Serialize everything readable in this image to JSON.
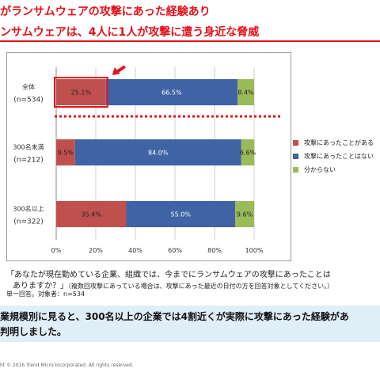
{
  "header": {
    "title_line1": "がランサムウェアの攻撃にあった経験あり",
    "title_line2": "ンサムウェアは、4人に1人が攻撃に遭う身近な脅威"
  },
  "colors": {
    "red": "#c0504d",
    "blue": "#3f63a4",
    "green": "#9bbb59",
    "highlight": "#e4121a"
  },
  "chart_data": {
    "type": "bar",
    "orientation": "horizontal",
    "stacked": true,
    "categories": [
      {
        "label": "全体",
        "n": "(n=534)"
      },
      {
        "label": "300名未満",
        "n": "(n=212)"
      },
      {
        "label": "300名以上",
        "n": "(n=322)"
      }
    ],
    "series": [
      {
        "name": "攻撃にあったことがある",
        "values": [
          25.1,
          9.5,
          35.4
        ],
        "labels": [
          "25.1%",
          "9.5%",
          "35.4%"
        ]
      },
      {
        "name": "攻撃にあったことはない",
        "values": [
          66.5,
          84.0,
          55.0
        ],
        "labels": [
          "66.5%",
          "84.0%",
          "55.0%"
        ]
      },
      {
        "name": "分からない",
        "values": [
          8.4,
          6.6,
          9.6
        ],
        "labels": [
          "8.4%",
          "6.6%",
          "9.6%"
        ]
      }
    ],
    "xticks": [
      "0%",
      "20%",
      "40%",
      "60%",
      "80%",
      "100%"
    ],
    "xlim": [
      0,
      100
    ],
    "grid": true,
    "legend_position": "right",
    "highlight": "全体 / 攻撃にあったことがある"
  },
  "captions": {
    "question": "「あなたが現在勤めている企業、組織では、今までにランサムウェアの攻撃にあったことは",
    "question_cont": "ありますか？」",
    "note": "（複数回攻撃にあっている場合は、攻撃にあった最近の日付の方を回答対象としてください。）",
    "meta": "単一回答。対象者：n=534"
  },
  "summary": {
    "line1": "業規模別に見ると、300名以上の企業では4割近くが実際に攻撃にあった経験があ",
    "line2": "判明しました。"
  },
  "footer": {
    "copyright": "ht © 2016 Trend Micro Incorporated. All rights reserved."
  }
}
